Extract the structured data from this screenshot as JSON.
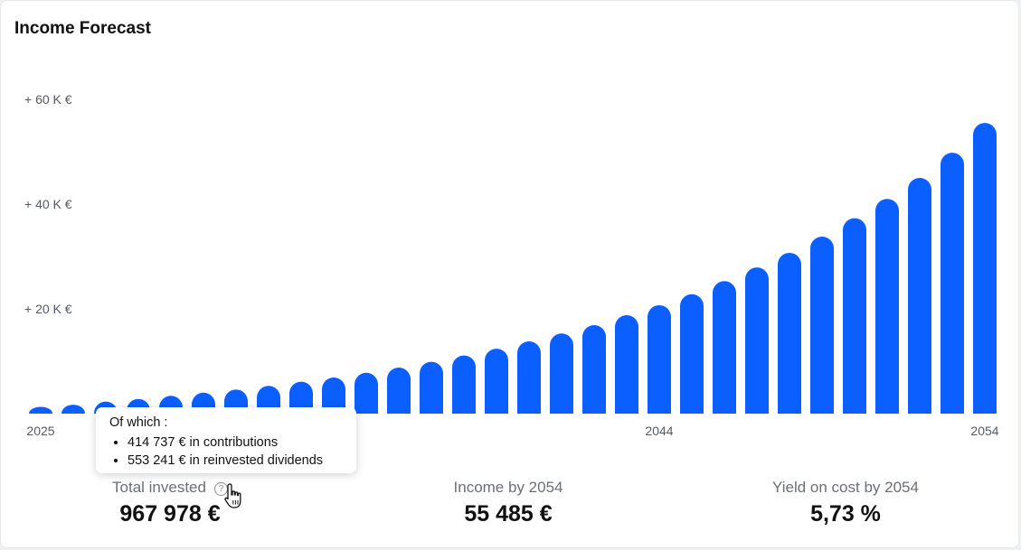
{
  "title": "Income Forecast",
  "chart_data": {
    "type": "bar",
    "x_start_year": 2025,
    "categories": [
      "2025",
      "2026",
      "2027",
      "2028",
      "2029",
      "2030",
      "2031",
      "2032",
      "2033",
      "2034",
      "2035",
      "2036",
      "2037",
      "2038",
      "2039",
      "2040",
      "2041",
      "2042",
      "2043",
      "2044",
      "2045",
      "2046",
      "2047",
      "2048",
      "2049",
      "2050",
      "2051",
      "2052",
      "2053",
      "2054"
    ],
    "values": [
      1300,
      1700,
      2300,
      2800,
      3400,
      4000,
      4600,
      5300,
      6100,
      6900,
      7800,
      8800,
      9900,
      11100,
      12400,
      13800,
      15300,
      16900,
      18800,
      20700,
      22800,
      25300,
      27900,
      30700,
      33800,
      37300,
      41000,
      45000,
      49800,
      55485
    ],
    "ylim": [
      0,
      60000
    ],
    "yticks": [
      20000,
      40000,
      60000
    ],
    "ytick_labels": [
      "+ 20 K €",
      "+ 40 K €",
      "+ 60 K €"
    ],
    "xtick_labels": [
      {
        "year": "2025",
        "label": "2025"
      },
      {
        "year": "2044",
        "label": "2044"
      },
      {
        "year": "2054",
        "label": "2054"
      }
    ],
    "bar_color": "#0a5ffe",
    "grid": false
  },
  "tooltip": {
    "title": "Of which :",
    "items": [
      "414 737 € in contributions",
      "553 241 € in reinvested dividends"
    ]
  },
  "kpis": [
    {
      "label": "Total invested",
      "value": "967 978 €"
    },
    {
      "label": "Income by 2054",
      "value": "55 485 €"
    },
    {
      "label": "Yield on cost by 2054",
      "value": "5,73 %"
    }
  ],
  "icons": {
    "help": "help-circle-icon",
    "cursor": "hand-pointer-icon"
  }
}
